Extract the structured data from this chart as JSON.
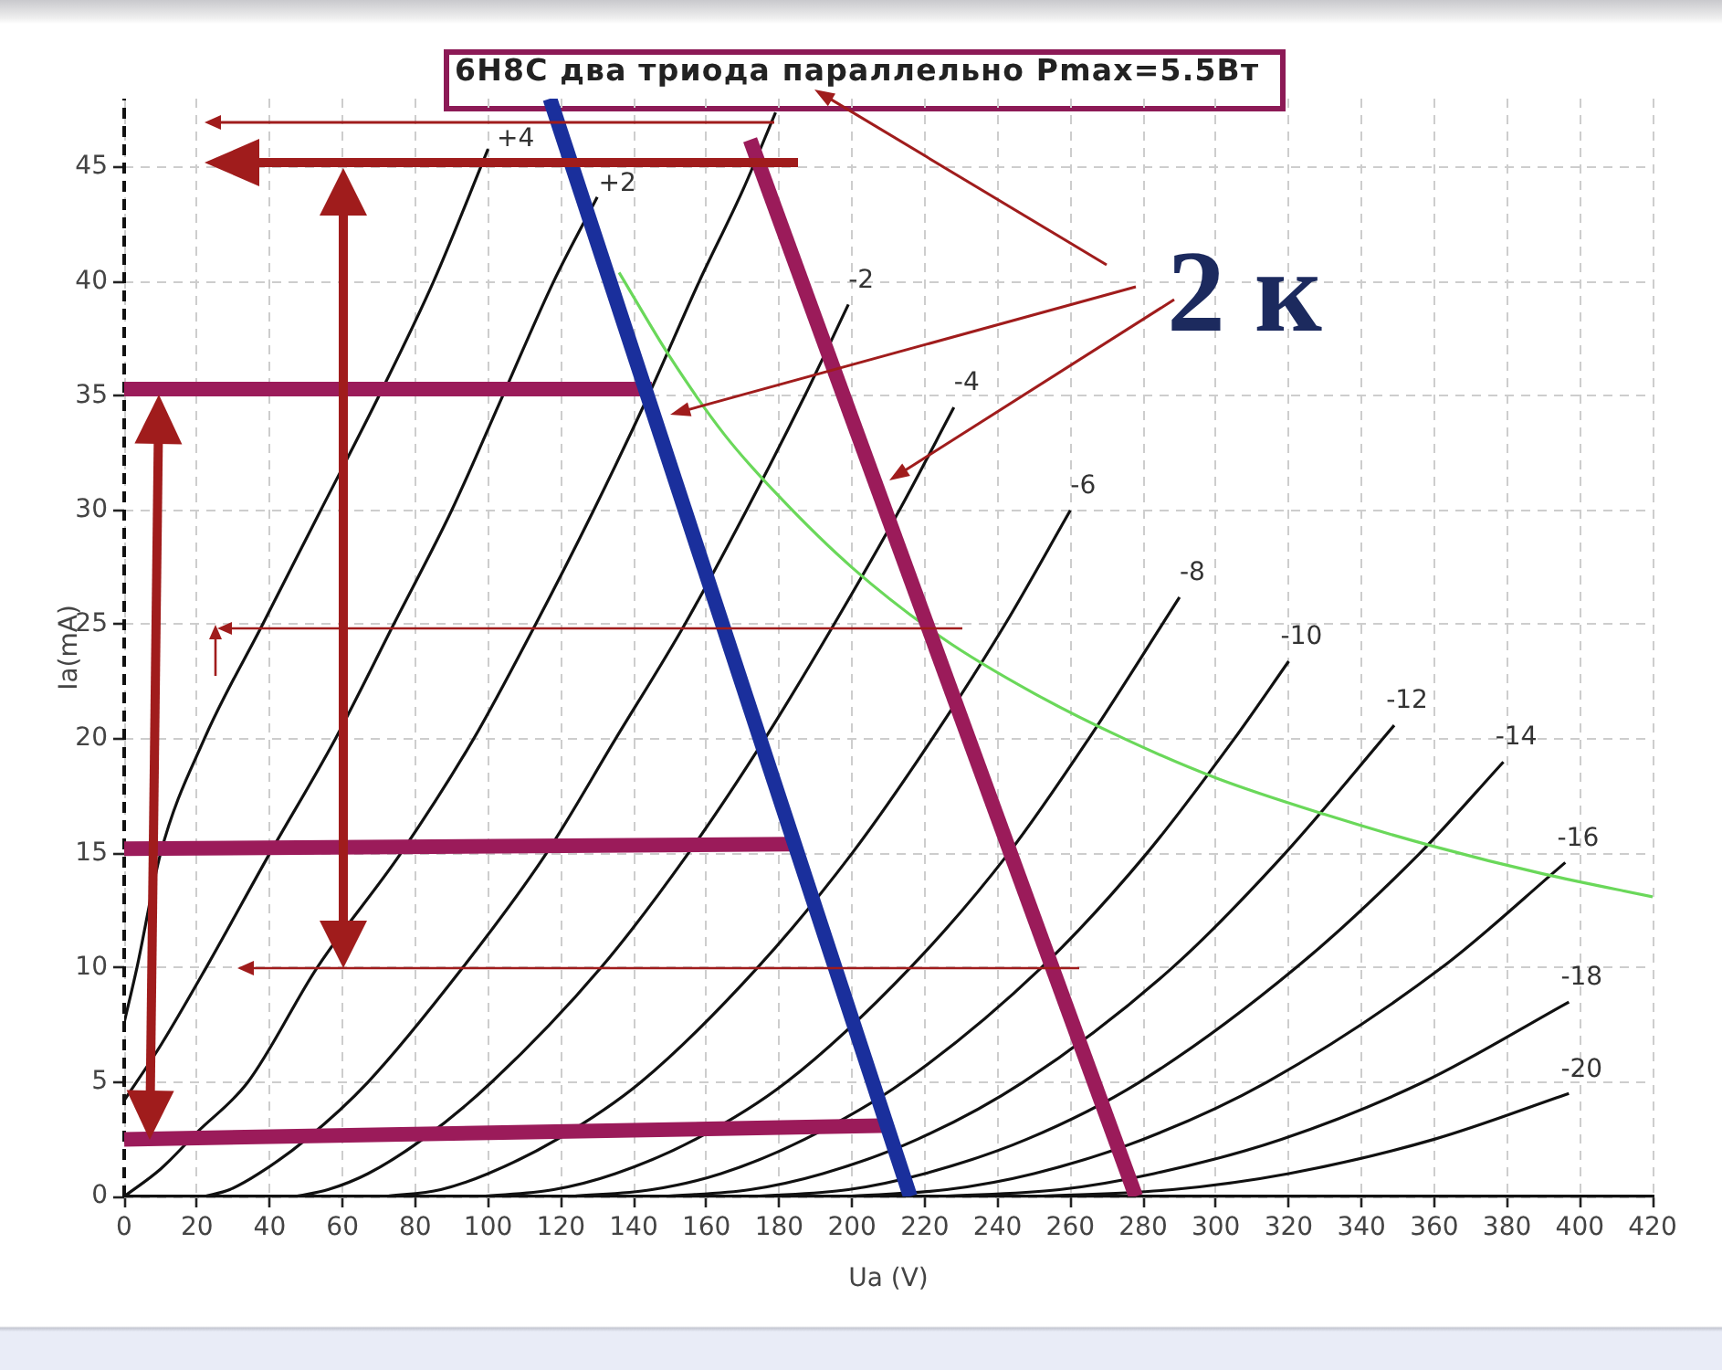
{
  "chart_data": {
    "type": "line",
    "title": "6Н8С два триода параллельно Pmax=5.5Вт",
    "xlabel": "Ua (V)",
    "ylabel": "Ia(mA)",
    "annotations": [
      "2 к"
    ],
    "xlim": [
      0,
      420
    ],
    "ylim": [
      0,
      48
    ],
    "xticks": [
      0,
      20,
      40,
      60,
      80,
      100,
      120,
      140,
      160,
      180,
      200,
      220,
      240,
      260,
      280,
      300,
      320,
      340,
      360,
      380,
      400,
      420
    ],
    "yticks": [
      0,
      5,
      10,
      15,
      20,
      25,
      30,
      35,
      40,
      45
    ],
    "grid": true,
    "series": [
      {
        "name": "+4",
        "color": "#111111",
        "x": [
          0,
          3.5,
          10,
          22,
          38,
          54,
          70,
          85,
          100
        ],
        "values": [
          7.6,
          10,
          15,
          20,
          25,
          30,
          35,
          40,
          45.8
        ]
      },
      {
        "name": "+2",
        "color": "#111111",
        "x": [
          0,
          10,
          22.5,
          40,
          58,
          74,
          90,
          104,
          118,
          130
        ],
        "values": [
          4.2,
          6.6,
          10,
          15,
          20,
          25,
          30,
          35,
          40,
          43.7
        ]
      },
      {
        "color": "#111111",
        "x": [
          0,
          10,
          20,
          34,
          53,
          76,
          96,
          113,
          129,
          144,
          158,
          170,
          179
        ],
        "values": [
          0,
          1.2,
          2.8,
          5,
          10,
          15,
          20,
          25,
          30,
          35,
          40,
          44,
          47.4
        ]
      },
      {
        "name": "-2",
        "color": "#111111",
        "x": [
          22,
          29,
          37,
          50,
          67,
          93,
          116,
          135,
          154,
          171,
          187,
          199
        ],
        "values": [
          0,
          0.3,
          1,
          2.5,
          5,
          10,
          15,
          20,
          25,
          30,
          35,
          39
        ]
      },
      {
        "name": "-4",
        "color": "#111111",
        "x": [
          47,
          56,
          67,
          82,
          101,
          131,
          155,
          176,
          195,
          213,
          228
        ],
        "values": [
          0,
          0.3,
          1,
          2.5,
          5,
          10,
          15,
          20,
          25,
          30,
          34.5
        ]
      },
      {
        "name": "-6",
        "color": "#111111",
        "x": [
          72,
          87,
          100,
          119,
          142,
          174,
          200,
          222,
          242,
          260
        ],
        "values": [
          0,
          0.3,
          1,
          2.5,
          5,
          10,
          15,
          20,
          25,
          30
        ]
      },
      {
        "name": "-8",
        "color": "#111111",
        "x": [
          98,
          118,
          135,
          157,
          182,
          216,
          243,
          265,
          290
        ],
        "values": [
          0,
          0.3,
          1,
          2.5,
          5,
          10,
          15,
          20,
          26.2
        ]
      },
      {
        "name": "-10",
        "color": "#111111",
        "x": [
          123,
          145,
          164,
          187,
          214,
          252,
          281,
          305,
          320
        ],
        "values": [
          0,
          0.3,
          1,
          2.5,
          5,
          10,
          15,
          20,
          23.4
        ]
      },
      {
        "name": "-12",
        "color": "#111111",
        "x": [
          148,
          172,
          192,
          218,
          247,
          288,
          319,
          349
        ],
        "values": [
          0,
          0.3,
          1,
          2.5,
          5,
          10,
          15,
          20.6
        ]
      },
      {
        "name": "-14",
        "color": "#111111",
        "x": [
          173,
          199,
          220,
          248,
          279,
          322,
          356,
          379
        ],
        "values": [
          0,
          0.3,
          1,
          2.5,
          5,
          10,
          15,
          19
        ]
      },
      {
        "name": "-16",
        "color": "#111111",
        "x": [
          198,
          226,
          250,
          280,
          314,
          362,
          396
        ],
        "values": [
          0,
          0.3,
          1,
          2.5,
          5,
          10,
          14.6
        ]
      },
      {
        "name": "-18",
        "color": "#111111",
        "x": [
          224,
          257,
          283,
          318,
          357,
          397
        ],
        "values": [
          0,
          0.3,
          1,
          2.5,
          5,
          8.5
        ]
      },
      {
        "name": "-20",
        "color": "#111111",
        "x": [
          250,
          288,
          320,
          360,
          397
        ],
        "values": [
          0,
          0.3,
          1,
          2.5,
          4.5
        ]
      },
      {
        "color": "#6ad85a",
        "x": [
          136,
          150,
          165,
          180,
          200,
          225,
          250,
          275,
          300,
          330,
          360,
          390,
          420
        ],
        "values": [
          40.4,
          36.7,
          33.3,
          30.6,
          27.5,
          24.4,
          22,
          20,
          18.3,
          16.7,
          15.3,
          14.1,
          13.1
        ]
      },
      {
        "color": "#9b1b5a",
        "x": [
          0,
          145
        ],
        "values": [
          35.3,
          35.3
        ]
      },
      {
        "color": "#9b1b5a",
        "x": [
          0,
          183
        ],
        "values": [
          15.2,
          15.4
        ]
      },
      {
        "color": "#9b1b5a",
        "x": [
          0,
          211
        ],
        "values": [
          2.5,
          3.1
        ]
      },
      {
        "color": "#1a2f9c",
        "x": [
          117,
          216
        ],
        "values": [
          48,
          0
        ]
      },
      {
        "color": "#9b1b5a",
        "x": [
          172,
          278
        ],
        "values": [
          46.2,
          0
        ]
      }
    ]
  }
}
